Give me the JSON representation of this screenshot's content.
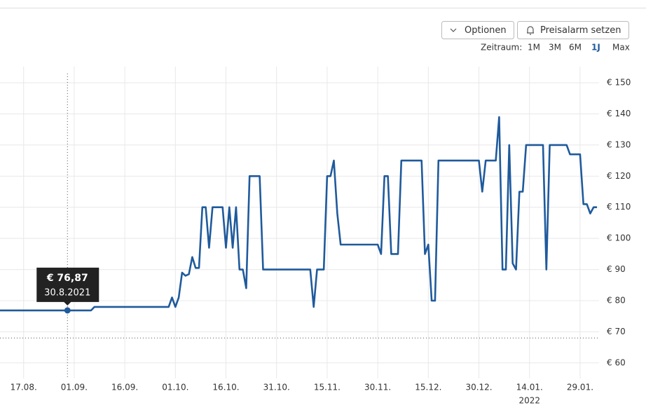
{
  "toolbar": {
    "options": "Optionen",
    "alert": "Preisalarm setzen",
    "period_label": "Zeitraum:",
    "periods": [
      "1M",
      "3M",
      "6M",
      "1J",
      "Max"
    ],
    "active_period": "1J"
  },
  "chart_data": {
    "type": "line",
    "x": [
      "2021-08-10",
      "2021-09-06",
      "2021-09-07",
      "2021-09-29",
      "2021-09-30",
      "2021-10-01",
      "2021-10-02",
      "2021-10-03",
      "2021-10-04",
      "2021-10-05",
      "2021-10-06",
      "2021-10-07",
      "2021-10-08",
      "2021-10-09",
      "2021-10-10",
      "2021-10-11",
      "2021-10-12",
      "2021-10-15",
      "2021-10-16",
      "2021-10-17",
      "2021-10-18",
      "2021-10-19",
      "2021-10-20",
      "2021-10-21",
      "2021-10-22",
      "2021-10-23",
      "2021-10-26",
      "2021-10-27",
      "2021-11-10",
      "2021-11-11",
      "2021-11-12",
      "2021-11-14",
      "2021-11-15",
      "2021-11-16",
      "2021-11-17",
      "2021-11-18",
      "2021-11-19",
      "2021-11-30",
      "2021-12-01",
      "2021-12-02",
      "2021-12-03",
      "2021-12-04",
      "2021-12-06",
      "2021-12-07",
      "2021-12-13",
      "2021-12-14",
      "2021-12-15",
      "2021-12-16",
      "2021-12-17",
      "2021-12-18",
      "2021-12-30",
      "2021-12-31",
      "2022-01-01",
      "2022-01-04",
      "2022-01-05",
      "2022-01-06",
      "2022-01-07",
      "2022-01-08",
      "2022-01-09",
      "2022-01-10",
      "2022-01-11",
      "2022-01-12",
      "2022-01-13",
      "2022-01-18",
      "2022-01-19",
      "2022-01-20",
      "2022-01-25",
      "2022-01-26",
      "2022-01-29",
      "2022-01-30",
      "2022-01-31",
      "2022-02-01",
      "2022-02-02",
      "2022-02-03"
    ],
    "series": [
      {
        "color": "#1f5a9c",
        "values": [
          76.87,
          76.87,
          78,
          78,
          81,
          78,
          81,
          89,
          88,
          88.5,
          94,
          90.5,
          90.5,
          110,
          110,
          97,
          110,
          110,
          97,
          110,
          97,
          110,
          90,
          90,
          84,
          120,
          120,
          90,
          90,
          78,
          90,
          90,
          120,
          120,
          125,
          108,
          98,
          98,
          95,
          120,
          120,
          95,
          95,
          125,
          125,
          95,
          98,
          80,
          80,
          125,
          125,
          115,
          125,
          125,
          139,
          90,
          90,
          130,
          92,
          90,
          115,
          115,
          130,
          130,
          90,
          130,
          130,
          127,
          127,
          111,
          111,
          108,
          110,
          110
        ]
      }
    ],
    "xlim": [
      "2021-08-10",
      "2022-02-03"
    ],
    "xticks": [
      {
        "value": "2021-08-17",
        "label": "17.08."
      },
      {
        "value": "2021-09-01",
        "label": "01.09."
      },
      {
        "value": "2021-09-16",
        "label": "16.09."
      },
      {
        "value": "2021-10-01",
        "label": "01.10."
      },
      {
        "value": "2021-10-16",
        "label": "16.10."
      },
      {
        "value": "2021-10-31",
        "label": "31.10."
      },
      {
        "value": "2021-11-15",
        "label": "15.11."
      },
      {
        "value": "2021-11-30",
        "label": "30.11."
      },
      {
        "value": "2021-12-15",
        "label": "15.12."
      },
      {
        "value": "2021-12-30",
        "label": "30.12."
      },
      {
        "value": "2022-01-14",
        "label": "14.01."
      },
      {
        "value": "2022-01-29",
        "label": "29.01."
      }
    ],
    "x_year_label": {
      "value": "2022-01-14",
      "label": "2022"
    },
    "ylim": [
      55,
      152.5
    ],
    "yticks": [
      {
        "value": 60,
        "label": "€ 60"
      },
      {
        "value": 70,
        "label": "€ 70"
      },
      {
        "value": 80,
        "label": "€ 80"
      },
      {
        "value": 90,
        "label": "€ 90"
      },
      {
        "value": 100,
        "label": "€ 100"
      },
      {
        "value": 110,
        "label": "€ 110"
      },
      {
        "value": 120,
        "label": "€ 120"
      },
      {
        "value": 130,
        "label": "€ 130"
      },
      {
        "value": 140,
        "label": "€ 140"
      },
      {
        "value": 150,
        "label": "€ 150"
      }
    ],
    "grid": true,
    "reference_line": 68,
    "tooltip": {
      "x": "2021-08-30",
      "value": 76.87,
      "label": "€ 76,87",
      "date": "30.8.2021"
    }
  }
}
